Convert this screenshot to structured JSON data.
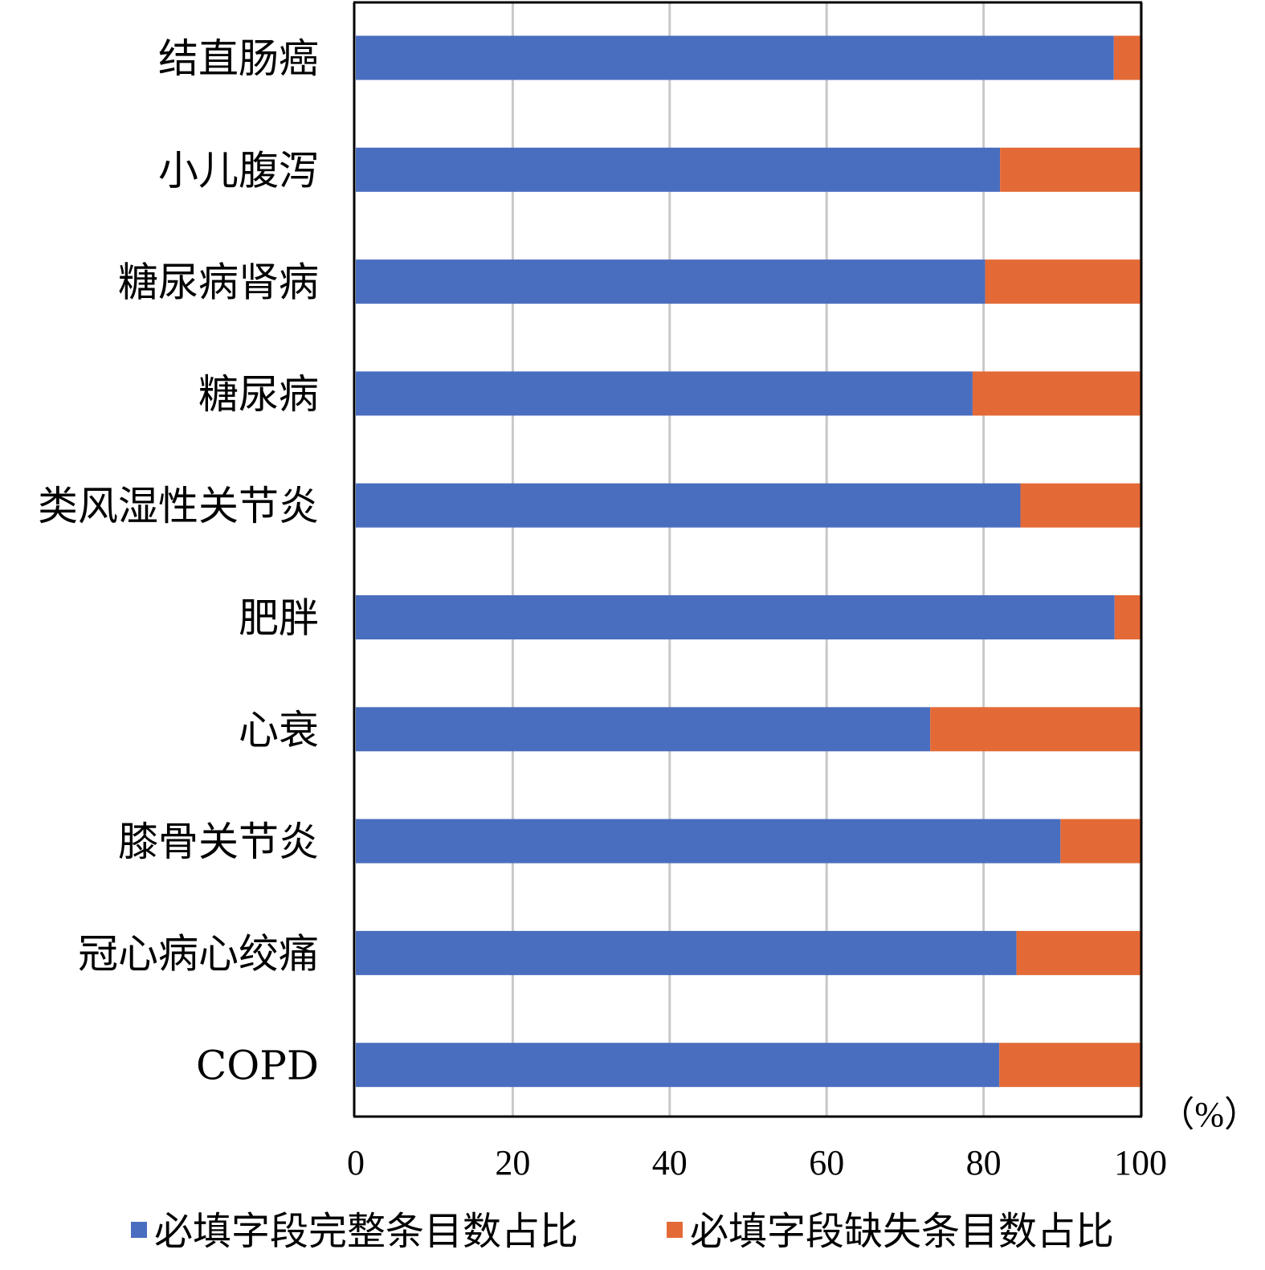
{
  "chart_data": {
    "type": "bar",
    "orientation": "horizontal",
    "stacked": true,
    "categories": [
      "结直肠癌",
      "小儿腹泻",
      "糖尿病肾病",
      "糖尿病",
      "类风湿性关节炎",
      "肥胖",
      "心衰",
      "膝骨关节炎",
      "冠心病心绞痛",
      "COPD"
    ],
    "series": [
      {
        "name": "必填字段完整条目数占比",
        "color": "#4a6ebf",
        "values": [
          96.6,
          82.1,
          80.2,
          78.6,
          84.7,
          96.7,
          73.2,
          89.8,
          84.2,
          82.0
        ]
      },
      {
        "name": "必填字段缺失条目数占比",
        "color": "#e36a37",
        "values": [
          3.4,
          17.9,
          19.8,
          21.4,
          15.3,
          3.3,
          26.8,
          10.2,
          15.8,
          18.0
        ]
      }
    ],
    "xlim": [
      0,
      100
    ],
    "xticks": [
      "0",
      "20",
      "40",
      "60",
      "80",
      "100"
    ],
    "x_unit": "（%）",
    "grid": true,
    "legend_position": "bottom"
  }
}
